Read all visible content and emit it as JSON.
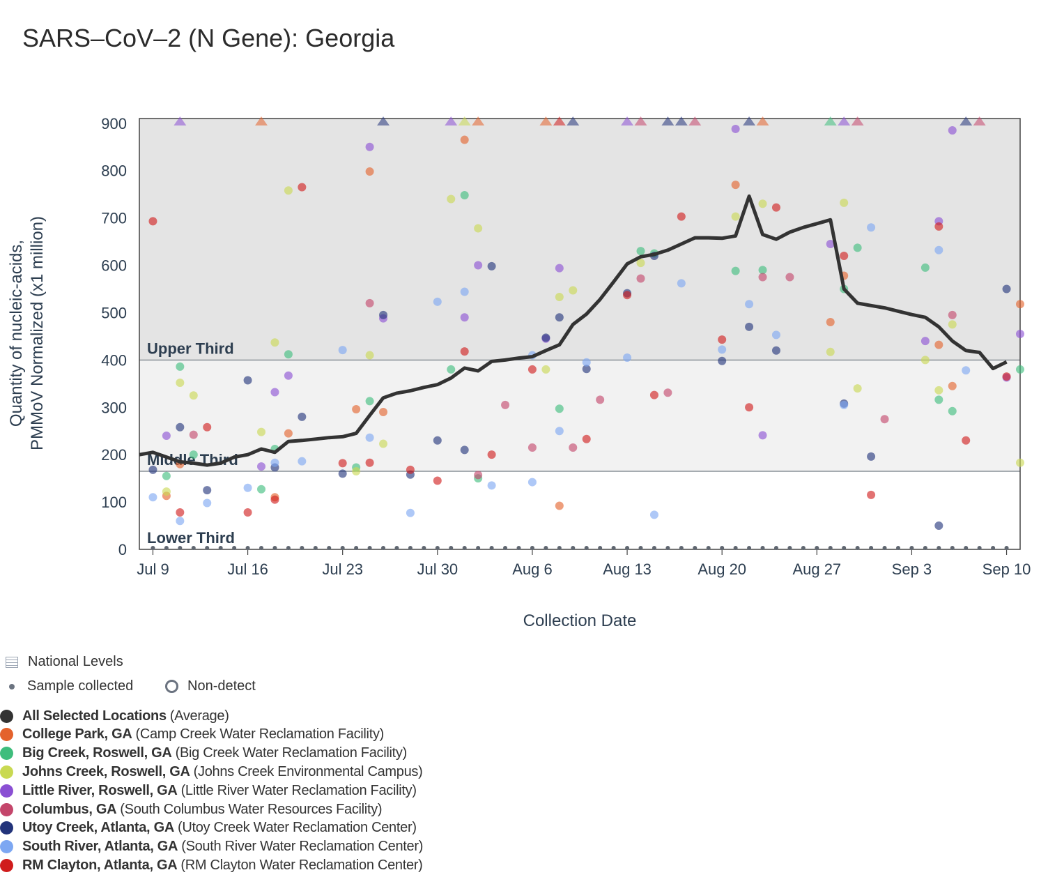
{
  "title": "SARS–CoV–2 (N Gene): Georgia",
  "chart_data": {
    "type": "scatter",
    "xlabel": "Collection Date",
    "ylabel_lines": [
      "Quantity of nucleic-acids,",
      "PMMoV Normalized (x1 million)"
    ],
    "ylim": [
      0,
      910
    ],
    "xlim": [
      "2023-07-08",
      "2023-09-11"
    ],
    "yticks": [
      0,
      100,
      200,
      300,
      400,
      500,
      600,
      700,
      800,
      900
    ],
    "xticks": [
      {
        "date": "2023-07-09",
        "label": "Jul 9"
      },
      {
        "date": "2023-07-16",
        "label": "Jul 16"
      },
      {
        "date": "2023-07-23",
        "label": "Jul 23"
      },
      {
        "date": "2023-07-30",
        "label": "Jul 30"
      },
      {
        "date": "2023-08-06",
        "label": "Aug 6"
      },
      {
        "date": "2023-08-13",
        "label": "Aug 13"
      },
      {
        "date": "2023-08-20",
        "label": "Aug 20"
      },
      {
        "date": "2023-08-27",
        "label": "Aug 27"
      },
      {
        "date": "2023-09-03",
        "label": "Sep 3"
      },
      {
        "date": "2023-09-10",
        "label": "Sep 10"
      }
    ],
    "bands": [
      {
        "label": "Upper Third",
        "from": 400,
        "to": 910,
        "color": "#e4e4e4"
      },
      {
        "label": "Middle Third",
        "from": 165,
        "to": 400,
        "color": "#f2f2f2"
      },
      {
        "label": "Lower Third",
        "from": 0,
        "to": 165,
        "color": "#ffffff"
      }
    ],
    "sample_dates_range": [
      "2023-07-09",
      "2023-09-10"
    ],
    "average": {
      "name": "All Selected Locations",
      "color": "#333333",
      "points": [
        [
          "2023-07-08",
          200
        ],
        [
          "2023-07-09",
          205
        ],
        [
          "2023-07-10",
          195
        ],
        [
          "2023-07-11",
          185
        ],
        [
          "2023-07-12",
          182
        ],
        [
          "2023-07-13",
          178
        ],
        [
          "2023-07-14",
          182
        ],
        [
          "2023-07-15",
          195
        ],
        [
          "2023-07-16",
          200
        ],
        [
          "2023-07-17",
          212
        ],
        [
          "2023-07-18",
          205
        ],
        [
          "2023-07-19",
          228
        ],
        [
          "2023-07-20",
          230
        ],
        [
          "2023-07-21",
          233
        ],
        [
          "2023-07-22",
          236
        ],
        [
          "2023-07-23",
          238
        ],
        [
          "2023-07-24",
          245
        ],
        [
          "2023-07-25",
          283
        ],
        [
          "2023-07-26",
          320
        ],
        [
          "2023-07-27",
          330
        ],
        [
          "2023-07-28",
          335
        ],
        [
          "2023-07-29",
          342
        ],
        [
          "2023-07-30",
          348
        ],
        [
          "2023-07-31",
          362
        ],
        [
          "2023-08-01",
          383
        ],
        [
          "2023-08-02",
          377
        ],
        [
          "2023-08-03",
          397
        ],
        [
          "2023-08-04",
          400
        ],
        [
          "2023-08-05",
          404
        ],
        [
          "2023-08-06",
          407
        ],
        [
          "2023-08-07",
          420
        ],
        [
          "2023-08-08",
          432
        ],
        [
          "2023-08-09",
          475
        ],
        [
          "2023-08-10",
          497
        ],
        [
          "2023-08-11",
          528
        ],
        [
          "2023-08-12",
          565
        ],
        [
          "2023-08-13",
          603
        ],
        [
          "2023-08-14",
          618
        ],
        [
          "2023-08-15",
          623
        ],
        [
          "2023-08-16",
          632
        ],
        [
          "2023-08-17",
          645
        ],
        [
          "2023-08-18",
          658
        ],
        [
          "2023-08-19",
          658
        ],
        [
          "2023-08-20",
          657
        ],
        [
          "2023-08-21",
          662
        ],
        [
          "2023-08-22",
          746
        ],
        [
          "2023-08-23",
          665
        ],
        [
          "2023-08-24",
          655
        ],
        [
          "2023-08-25",
          670
        ],
        [
          "2023-08-26",
          680
        ],
        [
          "2023-08-27",
          688
        ],
        [
          "2023-08-28",
          696
        ],
        [
          "2023-08-29",
          550
        ],
        [
          "2023-08-30",
          520
        ],
        [
          "2023-08-31",
          515
        ],
        [
          "2023-09-01",
          510
        ],
        [
          "2023-09-02",
          503
        ],
        [
          "2023-09-03",
          496
        ],
        [
          "2023-09-04",
          490
        ],
        [
          "2023-09-05",
          470
        ],
        [
          "2023-09-06",
          440
        ],
        [
          "2023-09-07",
          420
        ],
        [
          "2023-09-08",
          416
        ],
        [
          "2023-09-09",
          382
        ],
        [
          "2023-09-10",
          396
        ]
      ]
    },
    "series": [
      {
        "name": "College Park, GA",
        "site": "Camp Creek Water Reclamation Facility",
        "color": "#e4622c",
        "points": [
          [
            "2023-07-11",
            180
          ],
          [
            "2023-07-10",
            113
          ],
          [
            "2023-07-19",
            245
          ],
          [
            "2023-07-18",
            110
          ],
          [
            "2023-07-24",
            296
          ],
          [
            "2023-07-25",
            798
          ],
          [
            "2023-07-26",
            290
          ],
          [
            "2023-08-01",
            865
          ],
          [
            "2023-08-08",
            92
          ],
          [
            "2023-08-21",
            770
          ],
          [
            "2023-08-28",
            480
          ],
          [
            "2023-08-29",
            578
          ],
          [
            "2023-09-05",
            432
          ],
          [
            "2023-09-06",
            345
          ],
          [
            "2023-09-11",
            518
          ]
        ],
        "above": [
          "2023-07-17",
          "2023-08-02",
          "2023-08-07",
          "2023-08-23"
        ]
      },
      {
        "name": "Big Creek, Roswell, GA",
        "site": "Big Creek Water Reclamation Facility",
        "color": "#3ebd7c",
        "points": [
          [
            "2023-07-11",
            386
          ],
          [
            "2023-07-10",
            155
          ],
          [
            "2023-07-12",
            200
          ],
          [
            "2023-07-17",
            127
          ],
          [
            "2023-07-18",
            212
          ],
          [
            "2023-07-19",
            412
          ],
          [
            "2023-07-24",
            173
          ],
          [
            "2023-07-25",
            313
          ],
          [
            "2023-07-31",
            380
          ],
          [
            "2023-08-01",
            748
          ],
          [
            "2023-08-02",
            150
          ],
          [
            "2023-08-08",
            297
          ],
          [
            "2023-08-14",
            630
          ],
          [
            "2023-08-15",
            625
          ],
          [
            "2023-08-21",
            588
          ],
          [
            "2023-08-23",
            590
          ],
          [
            "2023-08-29",
            550
          ],
          [
            "2023-08-30",
            637
          ],
          [
            "2023-09-04",
            595
          ],
          [
            "2023-09-05",
            316
          ],
          [
            "2023-09-06",
            292
          ],
          [
            "2023-09-11",
            380
          ]
        ],
        "above": [
          "2023-08-28"
        ]
      },
      {
        "name": "Johns Creek, Roswell, GA",
        "site": "Johns Creek Environmental Campus",
        "color": "#c9d952",
        "points": [
          [
            "2023-07-11",
            352
          ],
          [
            "2023-07-10",
            122
          ],
          [
            "2023-07-12",
            325
          ],
          [
            "2023-07-17",
            248
          ],
          [
            "2023-07-18",
            437
          ],
          [
            "2023-07-19",
            758
          ],
          [
            "2023-07-24",
            165
          ],
          [
            "2023-07-25",
            410
          ],
          [
            "2023-07-26",
            223
          ],
          [
            "2023-07-31",
            740
          ],
          [
            "2023-08-02",
            678
          ],
          [
            "2023-08-07",
            380
          ],
          [
            "2023-08-08",
            533
          ],
          [
            "2023-08-09",
            547
          ],
          [
            "2023-08-14",
            605
          ],
          [
            "2023-08-21",
            703
          ],
          [
            "2023-08-23",
            730
          ],
          [
            "2023-08-28",
            417
          ],
          [
            "2023-08-29",
            732
          ],
          [
            "2023-08-30",
            340
          ],
          [
            "2023-09-04",
            400
          ],
          [
            "2023-09-05",
            336
          ],
          [
            "2023-09-06",
            475
          ],
          [
            "2023-09-11",
            183
          ]
        ],
        "above": [
          "2023-08-01"
        ]
      },
      {
        "name": "Little River, Roswell, GA",
        "site": "Little River Water Reclamation Facility",
        "color": "#8a4fd3",
        "points": [
          [
            "2023-07-10",
            240
          ],
          [
            "2023-07-17",
            175
          ],
          [
            "2023-07-18",
            332
          ],
          [
            "2023-07-19",
            367
          ],
          [
            "2023-07-25",
            850
          ],
          [
            "2023-07-26",
            488
          ],
          [
            "2023-08-01",
            490
          ],
          [
            "2023-08-02",
            600
          ],
          [
            "2023-08-07",
            445
          ],
          [
            "2023-08-08",
            594
          ],
          [
            "2023-08-21",
            888
          ],
          [
            "2023-08-23",
            241
          ],
          [
            "2023-08-28",
            645
          ],
          [
            "2023-09-04",
            440
          ],
          [
            "2023-09-05",
            693
          ],
          [
            "2023-09-06",
            885
          ],
          [
            "2023-09-10",
            363
          ],
          [
            "2023-09-11",
            455
          ]
        ],
        "above": [
          "2023-07-11",
          "2023-07-31",
          "2023-08-13",
          "2023-08-29"
        ]
      },
      {
        "name": "Columbus, GA",
        "site": "South Columbus Water Resources Facility",
        "color": "#c4466b",
        "points": [
          [
            "2023-07-12",
            242
          ],
          [
            "2023-07-25",
            520
          ],
          [
            "2023-08-02",
            157
          ],
          [
            "2023-08-04",
            305
          ],
          [
            "2023-08-06",
            215
          ],
          [
            "2023-08-09",
            215
          ],
          [
            "2023-08-11",
            316
          ],
          [
            "2023-08-14",
            572
          ],
          [
            "2023-08-16",
            331
          ],
          [
            "2023-08-23",
            575
          ],
          [
            "2023-08-25",
            575
          ],
          [
            "2023-09-01",
            275
          ],
          [
            "2023-09-06",
            495
          ]
        ],
        "above": [
          "2023-08-14",
          "2023-08-18",
          "2023-08-30",
          "2023-09-08"
        ]
      },
      {
        "name": "Utoy Creek, Atlanta, GA",
        "site": "Utoy Creek Water Reclamation Center",
        "color": "#22337a",
        "points": [
          [
            "2023-07-09",
            168
          ],
          [
            "2023-07-11",
            258
          ],
          [
            "2023-07-13",
            125
          ],
          [
            "2023-07-16",
            357
          ],
          [
            "2023-07-18",
            173
          ],
          [
            "2023-07-20",
            280
          ],
          [
            "2023-07-23",
            160
          ],
          [
            "2023-07-26",
            495
          ],
          [
            "2023-07-28",
            158
          ],
          [
            "2023-07-30",
            230
          ],
          [
            "2023-08-01",
            210
          ],
          [
            "2023-08-03",
            598
          ],
          [
            "2023-08-07",
            447
          ],
          [
            "2023-08-08",
            490
          ],
          [
            "2023-08-10",
            381
          ],
          [
            "2023-08-13",
            541
          ],
          [
            "2023-08-15",
            620
          ],
          [
            "2023-08-20",
            398
          ],
          [
            "2023-08-22",
            470
          ],
          [
            "2023-08-24",
            420
          ],
          [
            "2023-08-29",
            308
          ],
          [
            "2023-08-31",
            196
          ],
          [
            "2023-09-05",
            50
          ],
          [
            "2023-09-10",
            550
          ]
        ],
        "above": [
          "2023-07-26",
          "2023-08-09",
          "2023-08-16",
          "2023-08-17",
          "2023-08-22",
          "2023-09-07"
        ]
      },
      {
        "name": "South River, Atlanta, GA",
        "site": "South River Water Reclamation Center",
        "color": "#7da7f2",
        "points": [
          [
            "2023-07-09",
            110
          ],
          [
            "2023-07-11",
            60
          ],
          [
            "2023-07-13",
            98
          ],
          [
            "2023-07-16",
            130
          ],
          [
            "2023-07-18",
            183
          ],
          [
            "2023-07-20",
            186
          ],
          [
            "2023-07-23",
            421
          ],
          [
            "2023-07-25",
            236
          ],
          [
            "2023-07-28",
            77
          ],
          [
            "2023-07-30",
            523
          ],
          [
            "2023-08-01",
            544
          ],
          [
            "2023-08-03",
            135
          ],
          [
            "2023-08-06",
            410
          ],
          [
            "2023-08-06",
            142
          ],
          [
            "2023-08-08",
            250
          ],
          [
            "2023-08-10",
            395
          ],
          [
            "2023-08-13",
            405
          ],
          [
            "2023-08-15",
            73
          ],
          [
            "2023-08-17",
            562
          ],
          [
            "2023-08-20",
            422
          ],
          [
            "2023-08-22",
            518
          ],
          [
            "2023-08-24",
            453
          ],
          [
            "2023-08-29",
            305
          ],
          [
            "2023-08-31",
            680
          ],
          [
            "2023-09-05",
            632
          ],
          [
            "2023-09-07",
            378
          ]
        ],
        "above": []
      },
      {
        "name": "RM Clayton, Atlanta, GA",
        "site": "RM Clayton Water Reclamation Center",
        "color": "#d01c1c",
        "points": [
          [
            "2023-07-09",
            693
          ],
          [
            "2023-07-11",
            78
          ],
          [
            "2023-07-13",
            258
          ],
          [
            "2023-07-16",
            78
          ],
          [
            "2023-07-18",
            105
          ],
          [
            "2023-07-20",
            765
          ],
          [
            "2023-07-23",
            182
          ],
          [
            "2023-07-25",
            183
          ],
          [
            "2023-07-28",
            168
          ],
          [
            "2023-07-30",
            145
          ],
          [
            "2023-08-01",
            418
          ],
          [
            "2023-08-03",
            200
          ],
          [
            "2023-08-06",
            380
          ],
          [
            "2023-08-10",
            233
          ],
          [
            "2023-08-13",
            537
          ],
          [
            "2023-08-15",
            326
          ],
          [
            "2023-08-17",
            703
          ],
          [
            "2023-08-20",
            443
          ],
          [
            "2023-08-22",
            300
          ],
          [
            "2023-08-24",
            722
          ],
          [
            "2023-08-29",
            620
          ],
          [
            "2023-08-31",
            115
          ],
          [
            "2023-09-05",
            682
          ],
          [
            "2023-09-07",
            230
          ],
          [
            "2023-09-10",
            365
          ]
        ],
        "above": [
          "2023-08-08"
        ]
      }
    ]
  },
  "legend": {
    "national_levels": "National Levels",
    "sample_collected": "Sample collected",
    "non_detect": "Non-detect",
    "average_label": "All Selected Locations",
    "average_suffix": "(Average)"
  }
}
